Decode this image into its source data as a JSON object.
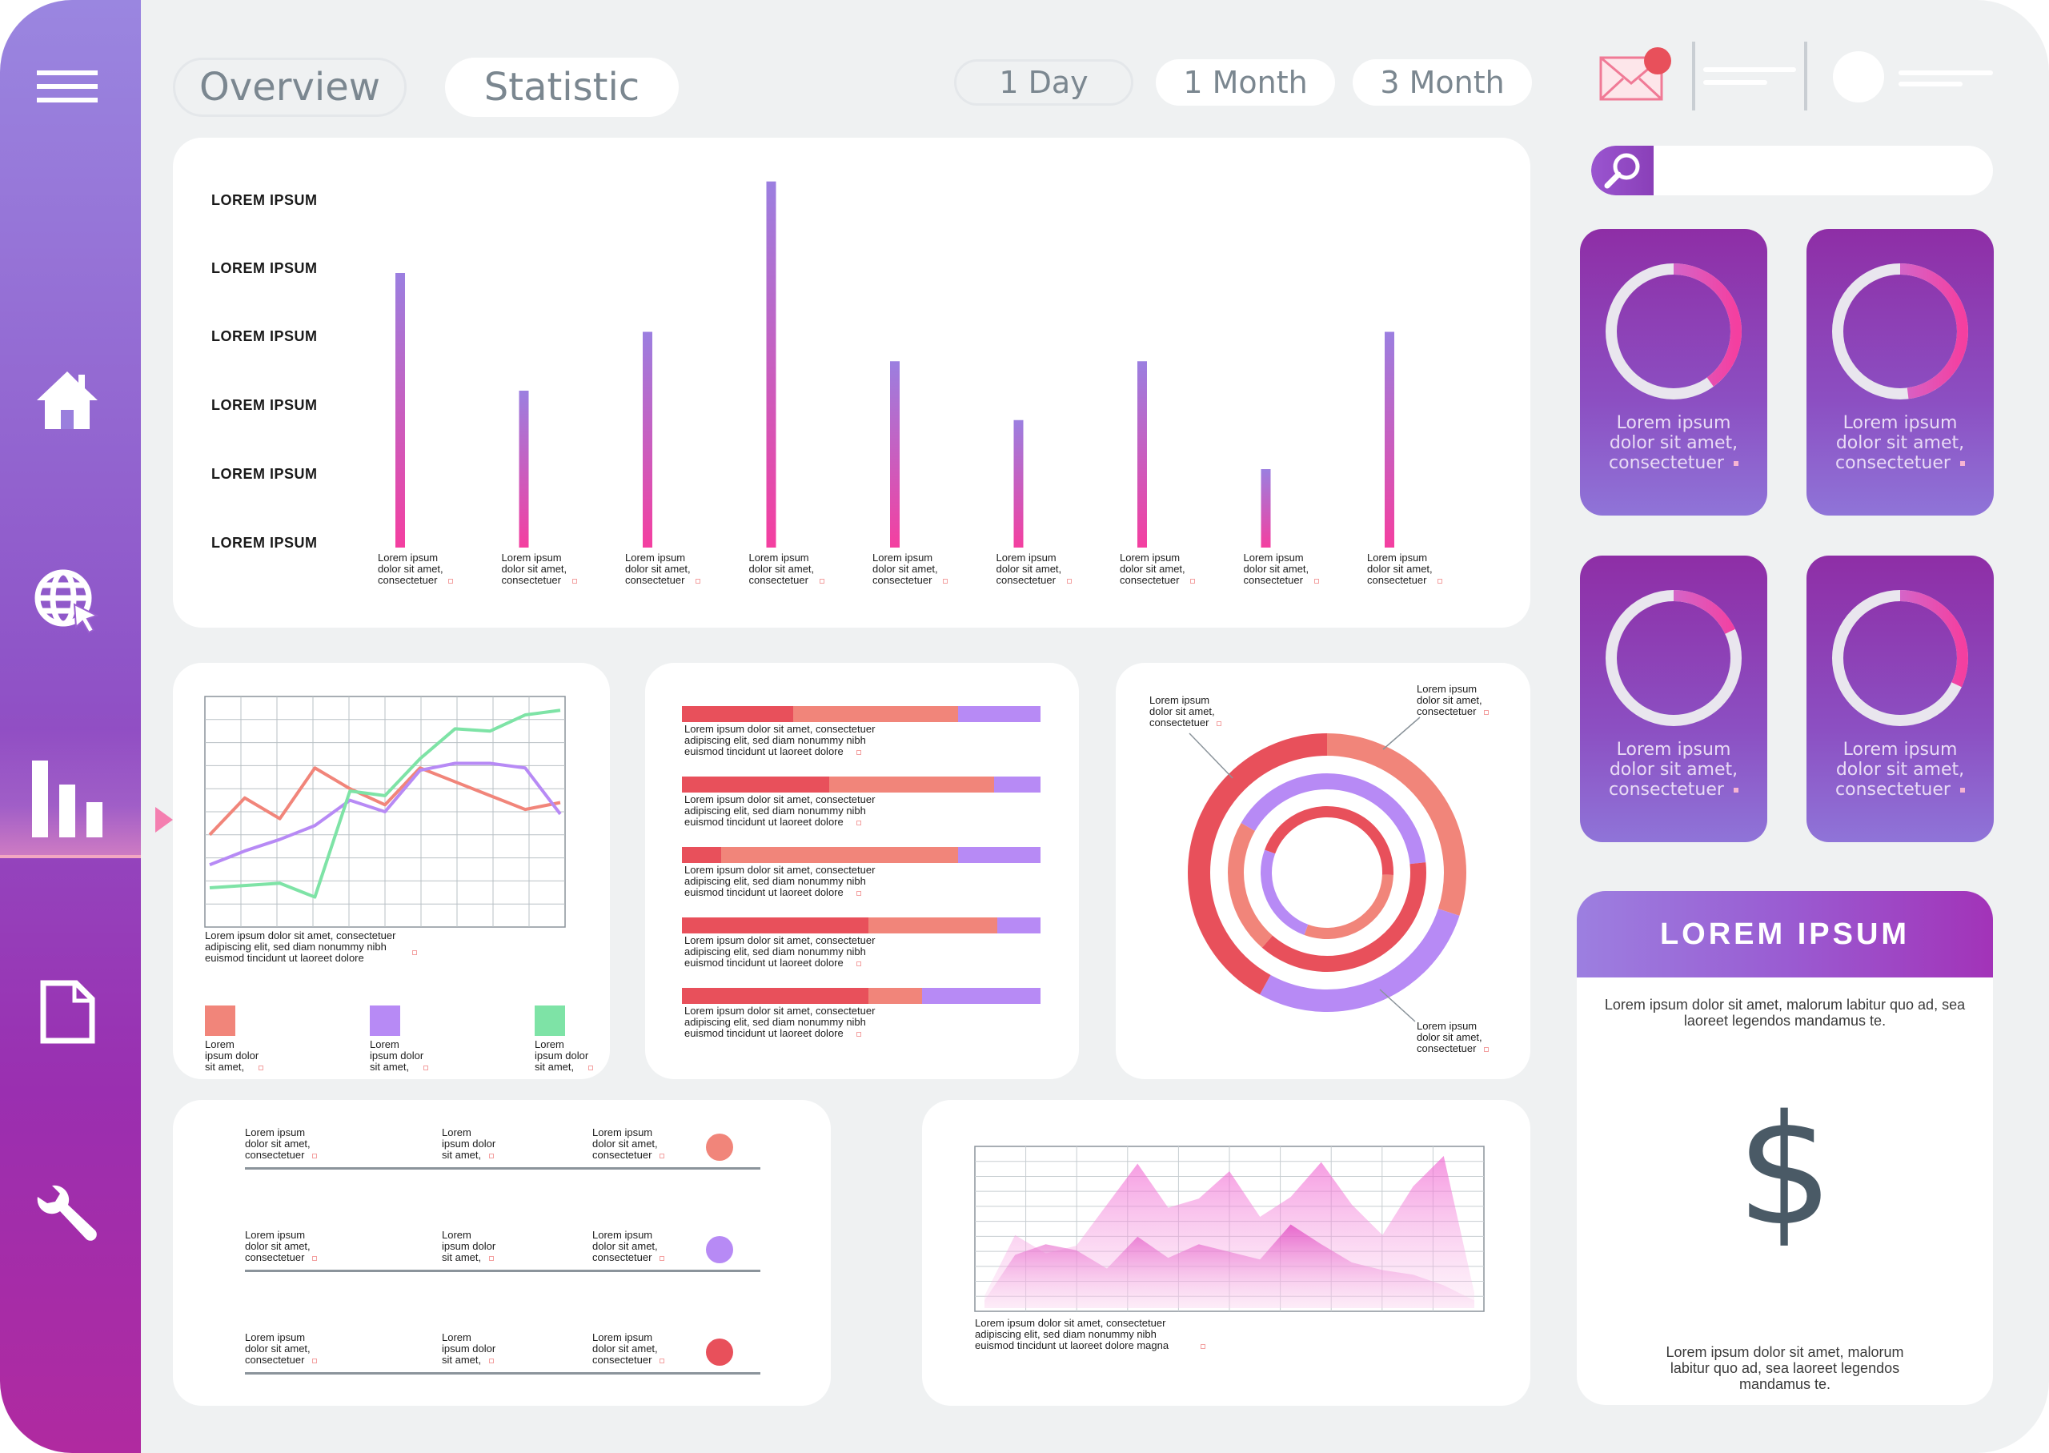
{
  "header": {
    "tabs": [
      {
        "label": "Overview"
      },
      {
        "label": "Statistic"
      }
    ],
    "ranges": [
      {
        "label": "1 Day"
      },
      {
        "label": "1 Month"
      },
      {
        "label": "3 Month"
      }
    ]
  },
  "sidebar": {
    "items": [
      "menu-icon",
      "home-icon",
      "globe-cursor-icon",
      "bar-chart-icon",
      "document-icon",
      "wrench-icon"
    ],
    "active": "bar-chart-icon"
  },
  "colors": {
    "accent_purple": "#9b7fe0",
    "accent_pink": "#f43fa0",
    "coral": "#f1857a",
    "red": "#e8505b",
    "lavender": "#b78af5",
    "mint": "#7ee3a6"
  },
  "top_chart": {
    "y_labels": [
      "LOREM IPSUM",
      "LOREM IPSUM",
      "LOREM IPSUM",
      "LOREM IPSUM",
      "LOREM IPSUM",
      "LOREM IPSUM"
    ],
    "caption": [
      "Lorem ipsum",
      "dolor sit amet,",
      "consectetuer"
    ]
  },
  "line_chart": {
    "caption": [
      "Lorem ipsum dolor sit amet, consectetuer",
      "adipiscing elit, sed diam nonummy nibh",
      "euismod tincidunt ut laoreet dolore"
    ],
    "legend_text": [
      "Lorem",
      "ipsum dolor",
      "sit amet,"
    ]
  },
  "hbar_chart": {
    "caption": [
      "Lorem ipsum dolor sit amet, consectetuer",
      "adipiscing elit, sed diam nonummy nibh",
      "euismod tincidunt ut laoreet dolore"
    ]
  },
  "ring_chart": {
    "label": [
      "Lorem ipsum",
      "dolor sit amet,",
      "consectetuer"
    ]
  },
  "list_panel": {
    "col1": [
      "Lorem ipsum",
      "dolor sit amet,",
      "consectetuer"
    ],
    "col2": [
      "Lorem",
      "ipsum dolor",
      "sit amet,"
    ],
    "col3": [
      "Lorem ipsum",
      "dolor sit amet,",
      "consectetuer"
    ]
  },
  "area_chart": {
    "caption": [
      "Lorem ipsum dolor sit amet, consectetuer",
      "adipiscing elit, sed diam nonummy nibh",
      "euismod tincidunt ut laoreet dolore magna"
    ]
  },
  "stat_cards": {
    "text": [
      "Lorem ipsum",
      "dolor sit amet,",
      "consectetuer"
    ]
  },
  "promo": {
    "title": "LOREM IPSUM",
    "subtitle": "Lorem ipsum dolor sit amet, malorum labitur quo ad, sea laoreet legendos mandamus te.",
    "symbol": "$",
    "footer": "Lorem ipsum dolor sit amet, malorum labitur quo ad, sea laoreet legendos mandamus te."
  },
  "chart_data": [
    {
      "type": "bar",
      "categories": [
        "1",
        "2",
        "3",
        "4",
        "5",
        "6",
        "7",
        "8",
        "9"
      ],
      "values": [
        4.2,
        2.4,
        3.3,
        5.6,
        2.85,
        1.95,
        2.85,
        1.2,
        3.3
      ],
      "ylim": [
        0,
        6
      ],
      "yticks": [
        "LOREM IPSUM",
        "LOREM IPSUM",
        "LOREM IPSUM",
        "LOREM IPSUM",
        "LOREM IPSUM",
        "LOREM IPSUM"
      ]
    },
    {
      "type": "line",
      "x": [
        0,
        1,
        2,
        3,
        4,
        5,
        6,
        7,
        8,
        9,
        10
      ],
      "ylim": [
        0,
        10
      ],
      "series": [
        {
          "values": [
            4.0,
            5.6,
            4.7,
            6.9,
            6.0,
            5.3,
            6.9,
            6.3,
            5.7,
            5.1,
            5.4
          ]
        },
        {
          "values": [
            2.7,
            3.3,
            3.8,
            4.4,
            5.5,
            5.0,
            6.8,
            7.1,
            7.1,
            6.9,
            4.9
          ]
        },
        {
          "values": [
            1.7,
            1.8,
            1.9,
            1.3,
            5.9,
            5.7,
            7.3,
            8.6,
            8.5,
            9.2,
            9.4
          ]
        }
      ]
    },
    {
      "type": "bar",
      "orientation": "horizontal-stacked",
      "rows": 5,
      "series": [
        {
          "values": [
            31,
            41,
            11,
            52,
            52
          ]
        },
        {
          "values": [
            46,
            46,
            66,
            36,
            15
          ]
        },
        {
          "values": [
            23,
            13,
            23,
            12,
            33
          ]
        }
      ],
      "xlim": [
        0,
        100
      ]
    },
    {
      "type": "pie",
      "variant": "concentric-rings",
      "rings": [
        {
          "segments": [
            {
              "value": 30
            },
            {
              "value": 28
            },
            {
              "value": 42
            }
          ]
        },
        {
          "segments": [
            {
              "value": 40
            },
            {
              "value": 38
            },
            {
              "value": 22
            }
          ]
        },
        {
          "segments": [
            {
              "value": 45
            },
            {
              "value": 30
            },
            {
              "value": 25
            }
          ]
        }
      ]
    },
    {
      "type": "area",
      "x": [
        0,
        1,
        2,
        3,
        4,
        5,
        6,
        7,
        8,
        9,
        10,
        11,
        12,
        13,
        14,
        15,
        16
      ],
      "ylim": [
        0,
        10
      ],
      "series": [
        {
          "values": [
            0.8,
            4.8,
            3.6,
            4.1,
            6.8,
            9.5,
            6.6,
            7.2,
            9.0,
            6.0,
            7.3,
            9.6,
            6.8,
            4.8,
            8.0,
            10.0,
            1.0
          ]
        },
        {
          "values": [
            0.5,
            3.5,
            4.2,
            3.8,
            2.6,
            4.7,
            3.3,
            4.2,
            3.7,
            3.2,
            5.5,
            4.2,
            3.0,
            2.5,
            2.2,
            1.5,
            0.5
          ]
        }
      ]
    },
    {
      "type": "pie",
      "variant": "progress-rings",
      "values": [
        0.4,
        0.48,
        0.18,
        0.32
      ]
    }
  ]
}
